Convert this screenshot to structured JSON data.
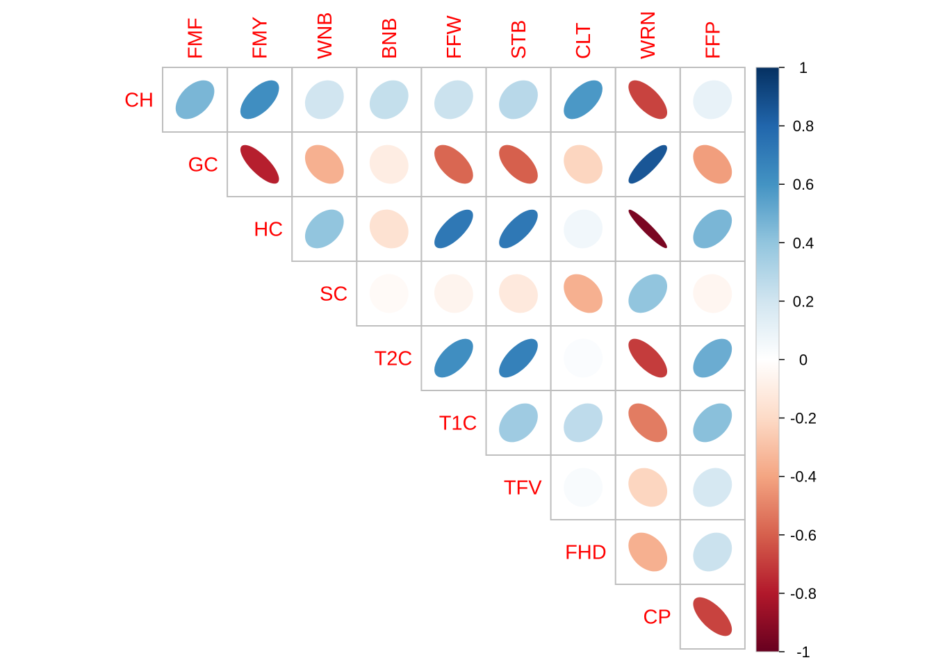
{
  "chart_data": {
    "type": "heatmap",
    "style": "correlation ellipse matrix, upper triangle",
    "rows": [
      "CH",
      "GC",
      "HC",
      "SC",
      "T2C",
      "T1C",
      "TFV",
      "FHD",
      "CP"
    ],
    "cols": [
      "FMF",
      "FMY",
      "WNB",
      "BNB",
      "FFW",
      "STB",
      "CLT",
      "WRN",
      "FFP"
    ],
    "values": [
      [
        0.46,
        0.62,
        0.2,
        0.24,
        0.22,
        0.28,
        0.58,
        -0.68,
        0.1
      ],
      [
        null,
        -0.78,
        -0.36,
        -0.1,
        -0.58,
        -0.6,
        -0.22,
        0.86,
        -0.42
      ],
      [
        null,
        null,
        0.4,
        -0.16,
        0.72,
        0.72,
        0.06,
        -0.95,
        0.46
      ],
      [
        null,
        null,
        null,
        -0.03,
        -0.06,
        -0.12,
        -0.36,
        0.4,
        -0.05
      ],
      [
        null,
        null,
        null,
        null,
        0.62,
        0.68,
        0.02,
        -0.7,
        0.5
      ],
      [
        null,
        null,
        null,
        null,
        null,
        0.36,
        0.26,
        -0.52,
        0.42
      ],
      [
        null,
        null,
        null,
        null,
        null,
        null,
        0.03,
        -0.22,
        0.18
      ],
      [
        null,
        null,
        null,
        null,
        null,
        null,
        null,
        -0.36,
        0.22
      ],
      [
        null,
        null,
        null,
        null,
        null,
        null,
        null,
        null,
        -0.68
      ]
    ],
    "colorbar": {
      "ticks": [
        "1",
        "0.8",
        "0.6",
        "0.4",
        "0.2",
        "0",
        "-0.2",
        "-0.4",
        "-0.6",
        "-0.8",
        "-1"
      ],
      "range": [
        -1,
        1
      ],
      "colors": [
        "#67001F",
        "#B2182B",
        "#D6604D",
        "#F4A582",
        "#FDDBC7",
        "#FFFFFF",
        "#D1E5F0",
        "#92C5DE",
        "#4393C3",
        "#2166AC",
        "#053061"
      ]
    },
    "label_color": "#FF0000",
    "grid_color": "#BEBEBE"
  }
}
